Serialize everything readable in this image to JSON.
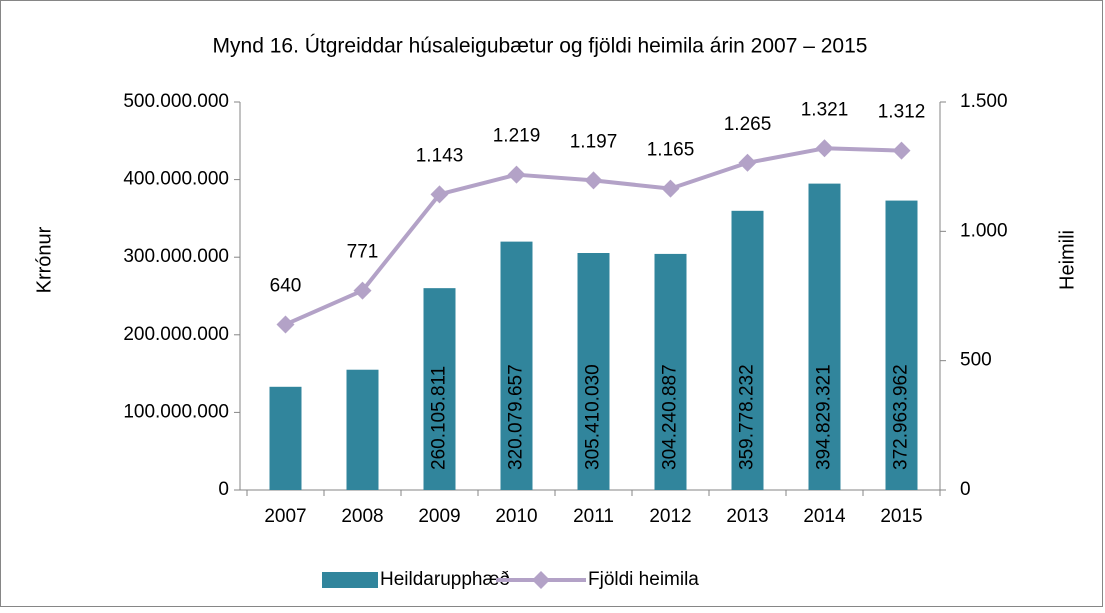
{
  "chart_data": {
    "type": "bar",
    "title": "Mynd 16. Útgreiddar húsaleigubætur og fjöldi heimila árin 2007 – 2015",
    "ylabel": "Krrónur",
    "y2label": "Heimili",
    "categories": [
      "2007",
      "2008",
      "2009",
      "2010",
      "2011",
      "2012",
      "2013",
      "2014",
      "2015"
    ],
    "series": [
      {
        "name": "Heildarupphæð",
        "type": "bar",
        "color": "#31859c",
        "values": [
          133000000,
          155000000,
          260105811,
          320079657,
          305410030,
          304240887,
          359778232,
          394829321,
          372963962
        ],
        "value_labels": [
          null,
          null,
          "260.105.811",
          "320.079.657",
          "305.410.030",
          "304.240.887",
          "359.778.232",
          "394.829.321",
          "372.963.962"
        ]
      },
      {
        "name": "Fjöldi heimila",
        "type": "line",
        "axis": "y2",
        "color": "#b3a2c7",
        "values": [
          640,
          771,
          1143,
          1219,
          1197,
          1165,
          1265,
          1321,
          1312
        ],
        "value_labels": [
          "640",
          "771",
          "1.143",
          "1.219",
          "1.197",
          "1.165",
          "1.265",
          "1.321",
          "1.312"
        ]
      }
    ],
    "ylim": [
      0,
      500000000
    ],
    "yticks": [
      0,
      {
        "value": 100000000,
        "label": "100.000.000"
      },
      {
        "value": 200000000,
        "label": "200.000.000"
      },
      {
        "value": 300000000,
        "label": "300.000.000"
      },
      {
        "value": 400000000,
        "label": "400.000.000"
      },
      {
        "value": 500000000,
        "label": "500.000.000"
      }
    ],
    "y2lim": [
      0,
      1500
    ],
    "y2ticks": [
      0,
      500,
      {
        "value": 1000,
        "label": "1.000"
      },
      {
        "value": 1500,
        "label": "1.500"
      }
    ],
    "grid": false,
    "legend": "bottom"
  }
}
